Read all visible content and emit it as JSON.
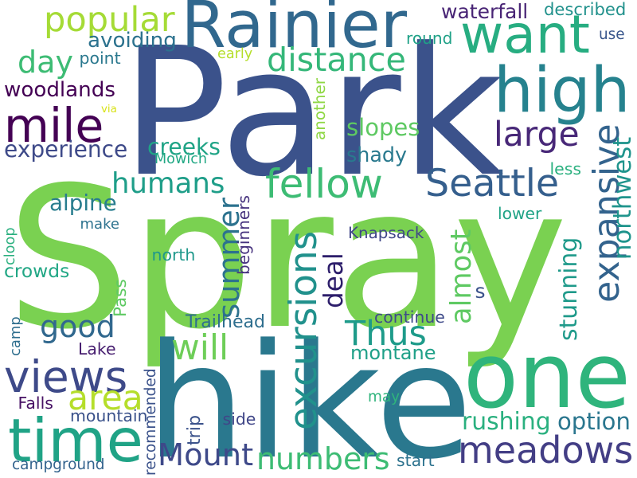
{
  "cloud": {
    "background": "#ffffff",
    "palette": "viridis",
    "words": [
      {
        "text": "Spray",
        "color": "#7ad151",
        "rotated": false
      },
      {
        "text": "Park",
        "color": "#3b528b",
        "rotated": false
      },
      {
        "text": "hike",
        "color": "#2a788e",
        "rotated": false
      },
      {
        "text": "one",
        "color": "#2fb47c",
        "rotated": false
      },
      {
        "text": "Rainier",
        "color": "#31688e",
        "rotated": false
      },
      {
        "text": "want",
        "color": "#27ad81",
        "rotated": false
      },
      {
        "text": "high",
        "color": "#26828e",
        "rotated": false
      },
      {
        "text": "time",
        "color": "#20a386",
        "rotated": false
      },
      {
        "text": "expansive",
        "color": "#33638d",
        "rotated": true
      },
      {
        "text": "excursions",
        "color": "#21918c",
        "rotated": true
      },
      {
        "text": "meadows",
        "color": "#433e85",
        "rotated": false
      },
      {
        "text": "mile",
        "color": "#440154",
        "rotated": false
      },
      {
        "text": "views",
        "color": "#3e4a89",
        "rotated": false
      },
      {
        "text": "Seattle",
        "color": "#355f8d",
        "rotated": false
      },
      {
        "text": "fellow",
        "color": "#3dbc74",
        "rotated": false
      },
      {
        "text": "humans",
        "color": "#1f9e89",
        "rotated": false
      },
      {
        "text": "popular",
        "color": "#a5db36",
        "rotated": false
      },
      {
        "text": "distance",
        "color": "#35b779",
        "rotated": false
      },
      {
        "text": "large",
        "color": "#482878",
        "rotated": false
      },
      {
        "text": "Thus",
        "color": "#1e9b8a",
        "rotated": false
      },
      {
        "text": "summer",
        "color": "#2c728e",
        "rotated": true
      },
      {
        "text": "almost",
        "color": "#5ec962",
        "rotated": true
      },
      {
        "text": "deal",
        "color": "#2d1e6b",
        "rotated": true
      },
      {
        "text": "good",
        "color": "#31688e",
        "rotated": false
      },
      {
        "text": "Mount",
        "color": "#3e4989",
        "rotated": false
      },
      {
        "text": "numbers",
        "color": "#3dbc74",
        "rotated": false
      },
      {
        "text": "will",
        "color": "#6ece58",
        "rotated": false
      },
      {
        "text": "area",
        "color": "#b5de2b",
        "rotated": false
      },
      {
        "text": "day",
        "color": "#3dbc74",
        "rotated": false
      },
      {
        "text": "northwest",
        "color": "#1f948c",
        "rotated": true
      },
      {
        "text": "stunning",
        "color": "#1f9a8a",
        "rotated": true
      },
      {
        "text": "rushing",
        "color": "#2ab07f",
        "rotated": false
      },
      {
        "text": "option",
        "color": "#2a768e",
        "rotated": false
      },
      {
        "text": "montane",
        "color": "#1fa088",
        "rotated": false
      },
      {
        "text": "creeks",
        "color": "#20a486",
        "rotated": false
      },
      {
        "text": "slopes",
        "color": "#5ec962",
        "rotated": false
      },
      {
        "text": "shady",
        "color": "#29798e",
        "rotated": false
      },
      {
        "text": "woodlands",
        "color": "#440154",
        "rotated": false
      },
      {
        "text": "experience",
        "color": "#3e4a89",
        "rotated": false
      },
      {
        "text": "alpine",
        "color": "#287d8e",
        "rotated": false
      },
      {
        "text": "crowds",
        "color": "#22a785",
        "rotated": false
      },
      {
        "text": "avoiding",
        "color": "#2c728e",
        "rotated": false
      },
      {
        "text": "waterfall",
        "color": "#482475",
        "rotated": false
      },
      {
        "text": "described",
        "color": "#21918c",
        "rotated": false
      },
      {
        "text": "round",
        "color": "#1fa187",
        "rotated": false
      },
      {
        "text": "use",
        "color": "#39568c",
        "rotated": false
      },
      {
        "text": "point",
        "color": "#2a788e",
        "rotated": false
      },
      {
        "text": "early",
        "color": "#b5de2b",
        "rotated": false
      },
      {
        "text": "via",
        "color": "#d8e219",
        "rotated": false
      },
      {
        "text": "another",
        "color": "#8fd744",
        "rotated": true
      },
      {
        "text": "Mowich",
        "color": "#22a884",
        "rotated": false
      },
      {
        "text": "less",
        "color": "#2ab07f",
        "rotated": false
      },
      {
        "text": "lower",
        "color": "#20a386",
        "rotated": false
      },
      {
        "text": "make",
        "color": "#2c728e",
        "rotated": false
      },
      {
        "text": "Knapsack",
        "color": "#404688",
        "rotated": false
      },
      {
        "text": "north",
        "color": "#1f988b",
        "rotated": false
      },
      {
        "text": "beginners",
        "color": "#46327e",
        "rotated": true
      },
      {
        "text": "cloop",
        "color": "#2ab07f",
        "rotated": true
      },
      {
        "text": "Pass",
        "color": "#5ec962",
        "rotated": true
      },
      {
        "text": "s",
        "color": "#3b528b",
        "rotated": false
      },
      {
        "text": "continue",
        "color": "#3e4a89",
        "rotated": false
      },
      {
        "text": "Trailhead",
        "color": "#2e6e8e",
        "rotated": false
      },
      {
        "text": "camp",
        "color": "#2e6e8e",
        "rotated": true
      },
      {
        "text": "Lake",
        "color": "#481f70",
        "rotated": false
      },
      {
        "text": "Falls",
        "color": "#471164",
        "rotated": false
      },
      {
        "text": "recommended",
        "color": "#3b528b",
        "rotated": true
      },
      {
        "text": "trip",
        "color": "#3b528b",
        "rotated": true
      },
      {
        "text": "may",
        "color": "#2fb47c",
        "rotated": false
      },
      {
        "text": "mountain",
        "color": "#3b528b",
        "rotated": false
      },
      {
        "text": "side",
        "color": "#404688",
        "rotated": false
      },
      {
        "text": "start",
        "color": "#2c728e",
        "rotated": false
      },
      {
        "text": "campground",
        "color": "#33638d",
        "rotated": false
      }
    ]
  }
}
